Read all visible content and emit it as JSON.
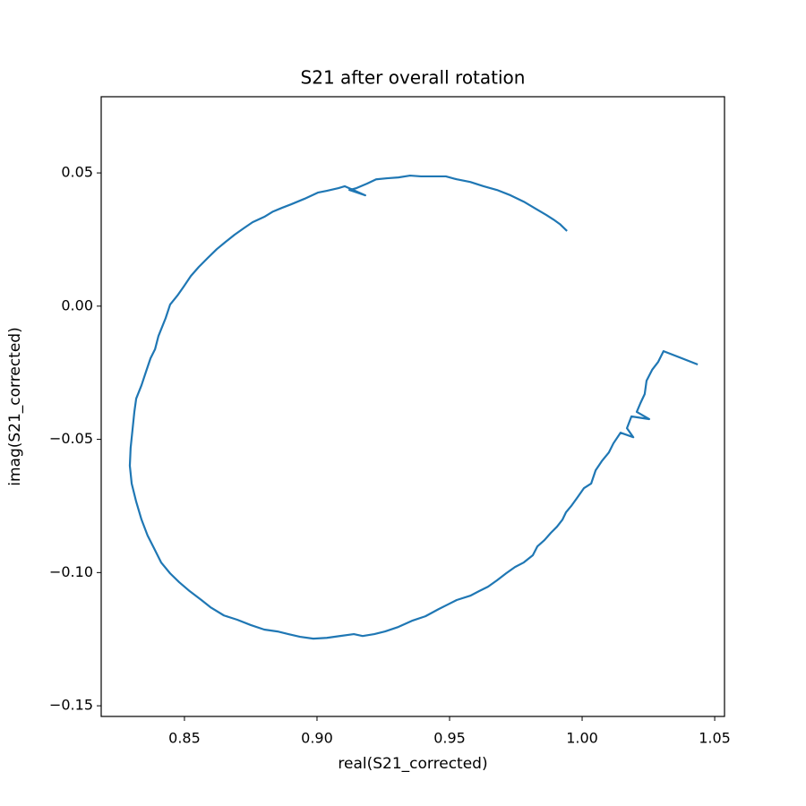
{
  "chart_data": {
    "type": "line",
    "title": "S21 after overall rotation",
    "xlabel": "real(S21_corrected)",
    "ylabel": "imag(S21_corrected)",
    "color": "#1f77b4",
    "grid": false,
    "xlim": [
      0.8186,
      1.0537
    ],
    "ylim": [
      -0.154,
      0.0786
    ],
    "xticks": [
      0.85,
      {
        "value": 0.9,
        "label": "0.90"
      },
      0.95,
      {
        "value": 1.0,
        "label": "1.00"
      },
      1.05
    ],
    "yticks": [
      {
        "value": -0.15,
        "label": "−0.15"
      },
      {
        "value": -0.1,
        "label": "−0.10"
      },
      {
        "value": -0.05,
        "label": "−0.05"
      },
      {
        "value": 0,
        "label": "0.00"
      },
      0.05
    ],
    "x": [
      1.0436,
      1.0307,
      1.0287,
      1.0264,
      1.0243,
      1.0236,
      1.022,
      1.0206,
      1.0253,
      1.0186,
      1.0169,
      1.0193,
      1.0145,
      1.0118,
      1.0101,
      1.0074,
      1.0051,
      1.0034,
      1.0007,
      0.9983,
      0.9959,
      0.9939,
      0.9926,
      0.9905,
      0.9882,
      0.9858,
      0.9831,
      0.9814,
      0.978,
      0.9747,
      0.9713,
      0.9679,
      0.9645,
      0.9611,
      0.9578,
      0.9527,
      0.9493,
      0.9459,
      0.9409,
      0.9358,
      0.9307,
      0.9257,
      0.9216,
      0.9172,
      0.9139,
      0.9088,
      0.9037,
      0.8986,
      0.8936,
      0.8892,
      0.8851,
      0.8801,
      0.875,
      0.8699,
      0.8649,
      0.8598,
      0.8564,
      0.852,
      0.848,
      0.8446,
      0.8412,
      0.8385,
      0.8361,
      0.8338,
      0.8318,
      0.8301,
      0.8294,
      0.8297,
      0.8304,
      0.8311,
      0.8318,
      0.8338,
      0.8355,
      0.8372,
      0.8389,
      0.8402,
      0.8429,
      0.8446,
      0.8473,
      0.8497,
      0.8524,
      0.8554,
      0.8588,
      0.8622,
      0.8655,
      0.8689,
      0.8723,
      0.8757,
      0.8801,
      0.8834,
      0.8868,
      0.8902,
      0.8953,
      0.9003,
      0.9037,
      0.9081,
      0.9105,
      0.9182,
      0.9122,
      0.9149,
      0.9189,
      0.9223,
      0.9264,
      0.9307,
      0.9351,
      0.9392,
      0.9443,
      0.9486,
      0.9527,
      0.9578,
      0.9628,
      0.9679,
      0.973,
      0.978,
      0.9824,
      0.9865,
      0.9892,
      0.9916,
      0.9943
    ],
    "values": [
      -0.0219,
      -0.0169,
      -0.0209,
      -0.0239,
      -0.028,
      -0.033,
      -0.0364,
      -0.0397,
      -0.0424,
      -0.0414,
      -0.0458,
      -0.0492,
      -0.0475,
      -0.0515,
      -0.0549,
      -0.0582,
      -0.0616,
      -0.0666,
      -0.0683,
      -0.0717,
      -0.075,
      -0.0774,
      -0.0801,
      -0.0828,
      -0.0851,
      -0.0878,
      -0.0902,
      -0.0935,
      -0.0962,
      -0.0979,
      -0.1003,
      -0.1029,
      -0.1053,
      -0.107,
      -0.1087,
      -0.1103,
      -0.112,
      -0.1137,
      -0.1164,
      -0.1181,
      -0.1204,
      -0.1221,
      -0.1231,
      -0.1238,
      -0.1231,
      -0.1238,
      -0.1245,
      -0.1248,
      -0.1241,
      -0.1231,
      -0.1221,
      -0.1214,
      -0.1197,
      -0.1177,
      -0.1161,
      -0.113,
      -0.1103,
      -0.107,
      -0.1036,
      -0.1003,
      -0.0962,
      -0.0908,
      -0.0861,
      -0.0801,
      -0.0734,
      -0.0666,
      -0.0599,
      -0.0532,
      -0.0465,
      -0.0397,
      -0.0347,
      -0.0297,
      -0.0246,
      -0.0196,
      -0.0162,
      -0.0112,
      -0.0045,
      0.0006,
      0.0039,
      0.0073,
      0.0113,
      0.0147,
      0.0181,
      0.0214,
      0.0241,
      0.0268,
      0.0292,
      0.0315,
      0.0335,
      0.0355,
      0.0369,
      0.0382,
      0.0403,
      0.0426,
      0.0433,
      0.0443,
      0.045,
      0.0416,
      0.0436,
      0.0443,
      0.046,
      0.0476,
      0.048,
      0.0483,
      0.049,
      0.0487,
      0.0487,
      0.0487,
      0.0476,
      0.0466,
      0.045,
      0.0436,
      0.0416,
      0.0392,
      0.0366,
      0.0342,
      0.0325,
      0.0308,
      0.0282
    ]
  }
}
